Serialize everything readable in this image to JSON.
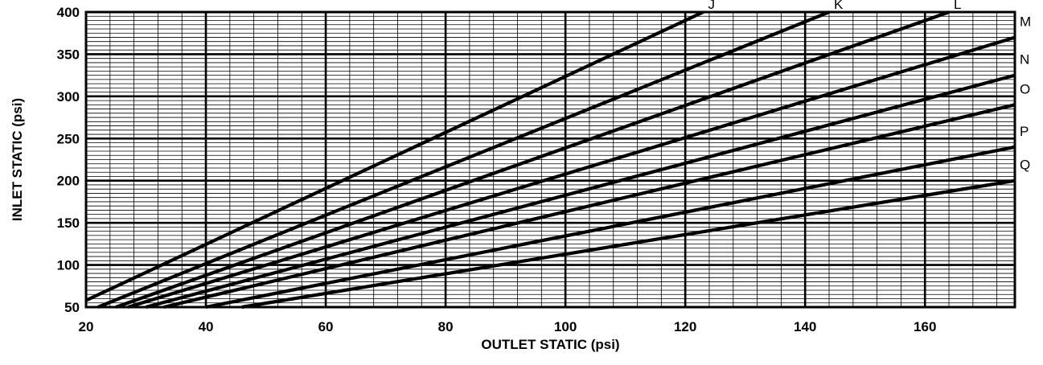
{
  "chart_data": {
    "type": "line",
    "title": "",
    "xlabel": "OUTLET STATIC (psi)",
    "ylabel": "INLET STATIC (psi)",
    "xlim": [
      20,
      175
    ],
    "ylim": [
      50,
      400
    ],
    "x_ticks": [
      20,
      40,
      60,
      80,
      100,
      120,
      140,
      160
    ],
    "y_ticks": [
      50,
      100,
      150,
      200,
      250,
      300,
      350,
      400
    ],
    "grid": true,
    "series": [
      {
        "name": "J",
        "x": [
          20,
          123
        ],
        "y": [
          58,
          400
        ]
      },
      {
        "name": "K",
        "x": [
          22,
          144
        ],
        "y": [
          50,
          400
        ]
      },
      {
        "name": "L",
        "x": [
          25,
          164
        ],
        "y": [
          50,
          400
        ]
      },
      {
        "name": "M",
        "x": [
          27,
          175
        ],
        "y": [
          50,
          370
        ]
      },
      {
        "name": "N",
        "x": [
          30,
          175
        ],
        "y": [
          50,
          325
        ]
      },
      {
        "name": "O",
        "x": [
          33,
          175
        ],
        "y": [
          50,
          290
        ]
      },
      {
        "name": "P",
        "x": [
          40,
          175
        ],
        "y": [
          50,
          240
        ]
      },
      {
        "name": "Q",
        "x": [
          46,
          175
        ],
        "y": [
          50,
          200
        ]
      }
    ]
  }
}
